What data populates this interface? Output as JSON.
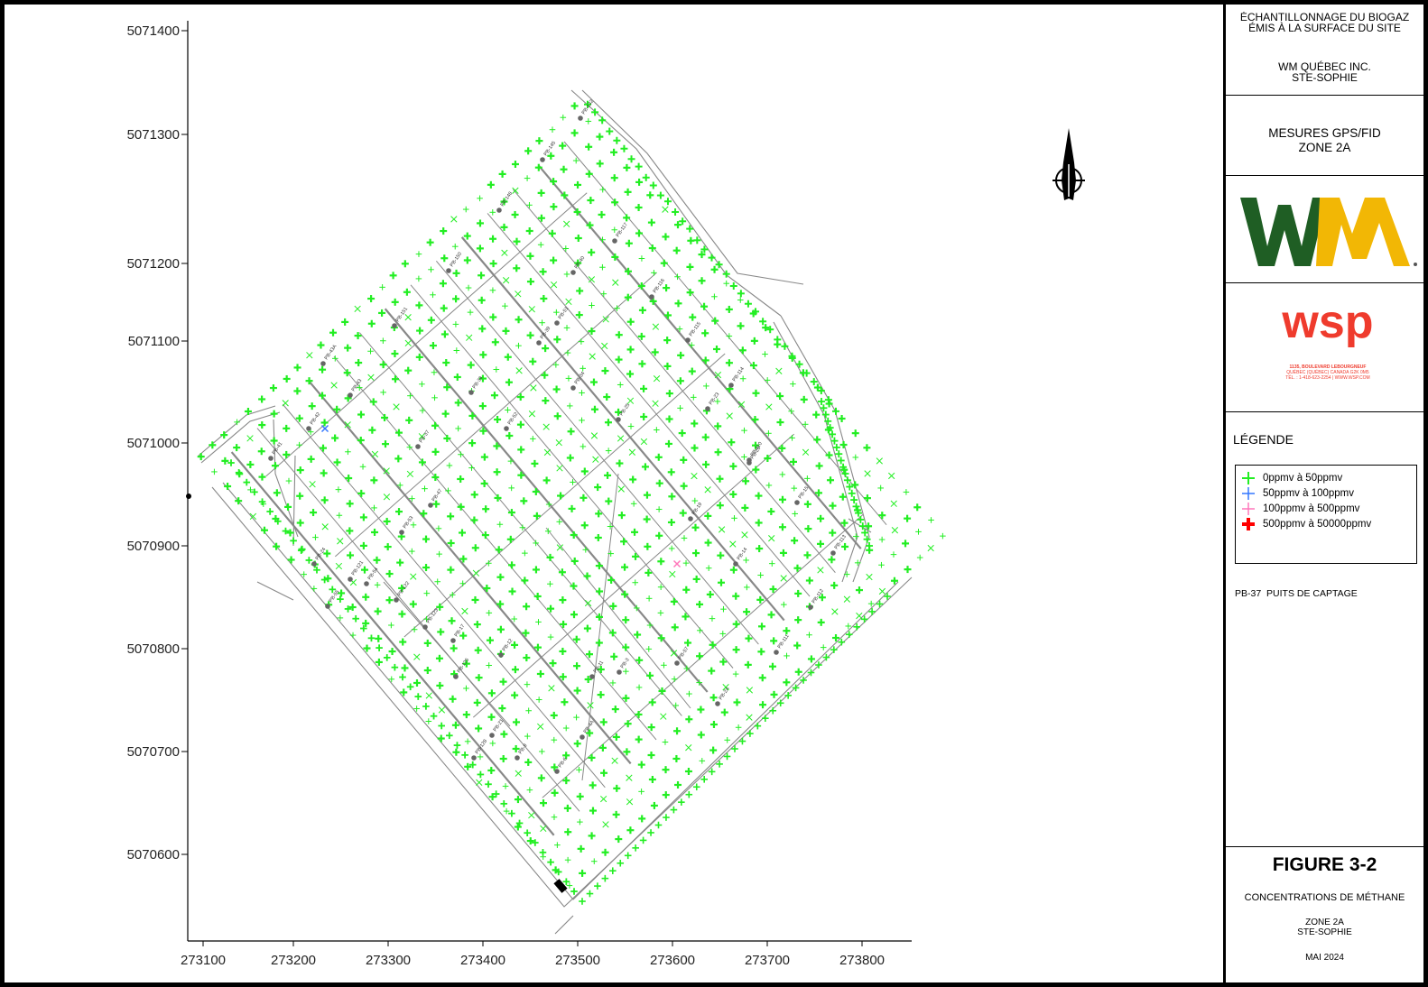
{
  "map": {
    "x_axis_ticks": [
      "273100",
      "273200",
      "273300",
      "273400",
      "273500",
      "273600",
      "273700",
      "273800"
    ],
    "y_axis_ticks": [
      "5071400",
      "5071300",
      "5071200",
      "5071100",
      "5071000",
      "5070900",
      "5070800",
      "5070700",
      "5070600"
    ],
    "north_arrow_icon": "north-arrow-icon",
    "well_labels": [
      "PB-41",
      "PB-42",
      "PB-43",
      "PB-43A",
      "PB-151",
      "PB-150",
      "PB-148",
      "PB-145",
      "PB-132",
      "PB-117",
      "PB-116",
      "PB-115",
      "PB-114",
      "PB-110",
      "PB-111",
      "PB-112",
      "PB-113",
      "PB-15",
      "PB-14",
      "PB-19",
      "PB-20",
      "PB-23",
      "PB-25",
      "PB-34",
      "PB-37",
      "PB-38",
      "PB-39",
      "PB-40",
      "PB-47",
      "PB-51",
      "PB-52",
      "PB-53",
      "PB-54",
      "PB-55",
      "PB-57",
      "PB-2A",
      "PB-3",
      "PB-4A",
      "PB-6",
      "PB-9",
      "PB-11",
      "PB-12",
      "PB-17",
      "PB-21",
      "PB-24",
      "PB-121",
      "PB-122",
      "PB-123",
      "PB-125",
      "PB-128"
    ],
    "colors": {
      "green": "#22ee22",
      "blue": "#3377ff",
      "pink": "#ff77bb",
      "red": "#ff0000",
      "roads": "#888888",
      "wells": "#666666"
    }
  },
  "panel": {
    "title_line1": "ÉCHANTILLONNAGE DU BIOGAZ",
    "title_line2": "ÉMIS À LA SURFACE DU SITE",
    "client_line1": "WM QUÉBEC INC.",
    "client_line2": "STE-SOPHIE",
    "measure_line1": "MESURES GPS/FID",
    "measure_line2": "ZONE 2A",
    "wm_logo_text": "WM",
    "wsp_logo_text": "wsp",
    "wsp_addr1": "1135, BOULEVARD LEBOURGNEUF",
    "wsp_addr2": "QUÉBEC (QUÉBEC) CANADA G2K 0M5",
    "wsp_addr3": "TÉL. : 1-418-623-2254 | WWW.WSP.COM",
    "legend_title": "LÉGENDE",
    "legend_items": [
      {
        "label": "0ppmv  à  50ppmv"
      },
      {
        "label": "50ppmv  à  100ppmv"
      },
      {
        "label": "100ppmv  à  500ppmv"
      },
      {
        "label": "500ppmv  à  50000ppmv"
      }
    ],
    "well_legend_code": "PB-37",
    "well_legend_text": "PUITS DE CAPTAGE",
    "figure_number": "FIGURE 3-2",
    "figure_caption": "CONCENTRATIONS DE MÉTHANE",
    "figure_zone_line1": "ZONE 2A",
    "figure_zone_line2": "STE-SOPHIE",
    "figure_date": "MAI 2024"
  }
}
